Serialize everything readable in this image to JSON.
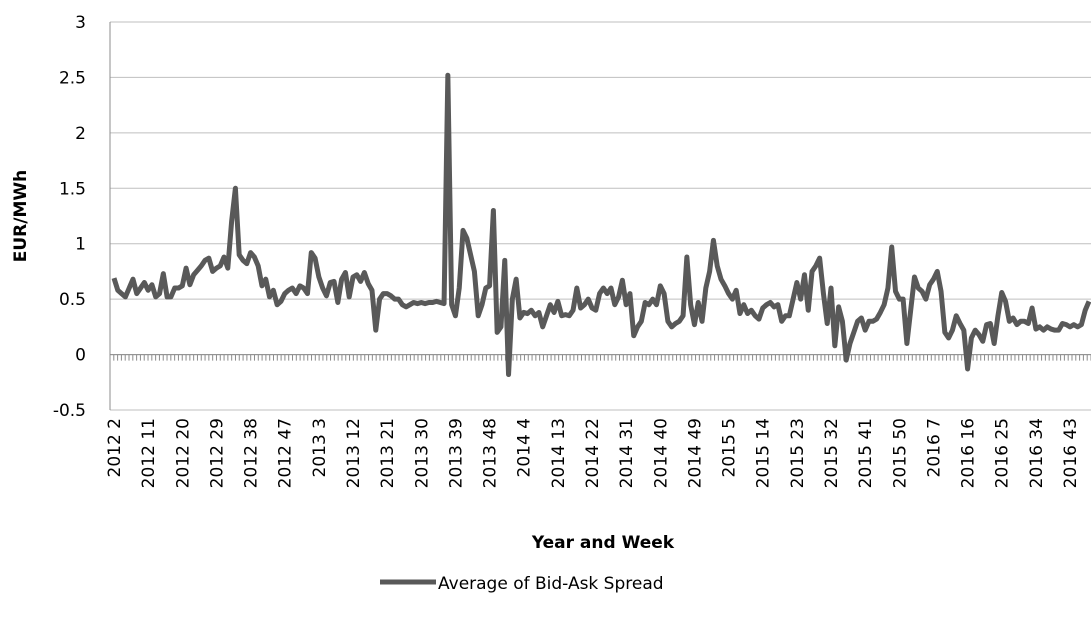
{
  "chart_data": {
    "type": "line",
    "x_label": "Year and Week",
    "y_label": "EUR/MWh",
    "categories": [
      "2012 2",
      null,
      null,
      null,
      null,
      null,
      null,
      null,
      null,
      "2012 11",
      null,
      null,
      null,
      null,
      null,
      null,
      null,
      null,
      "2012 20",
      null,
      null,
      null,
      null,
      null,
      null,
      null,
      null,
      "2012 29",
      null,
      null,
      null,
      null,
      null,
      null,
      null,
      null,
      "2012 38",
      null,
      null,
      null,
      null,
      null,
      null,
      null,
      null,
      "2012 47",
      null,
      null,
      null,
      null,
      null,
      null,
      null,
      null,
      "2013 3",
      null,
      null,
      null,
      null,
      null,
      null,
      null,
      null,
      "2013 12",
      null,
      null,
      null,
      null,
      null,
      null,
      null,
      null,
      "2013 21",
      null,
      null,
      null,
      null,
      null,
      null,
      null,
      null,
      "2013 30",
      null,
      null,
      null,
      null,
      null,
      null,
      null,
      null,
      "2013 39",
      null,
      null,
      null,
      null,
      null,
      null,
      null,
      null,
      "2013 48",
      null,
      null,
      null,
      null,
      null,
      null,
      null,
      null,
      "2014 4",
      null,
      null,
      null,
      null,
      null,
      null,
      null,
      null,
      "2014 13",
      null,
      null,
      null,
      null,
      null,
      null,
      null,
      null,
      "2014 22",
      null,
      null,
      null,
      null,
      null,
      null,
      null,
      null,
      "2014 31",
      null,
      null,
      null,
      null,
      null,
      null,
      null,
      null,
      "2014 40",
      null,
      null,
      null,
      null,
      null,
      null,
      null,
      null,
      "2014 49",
      null,
      null,
      null,
      null,
      null,
      null,
      null,
      null,
      "2015 5",
      null,
      null,
      null,
      null,
      null,
      null,
      null,
      null,
      "2015 14",
      null,
      null,
      null,
      null,
      null,
      null,
      null,
      null,
      "2015 23",
      null,
      null,
      null,
      null,
      null,
      null,
      null,
      null,
      "2015 32",
      null,
      null,
      null,
      null,
      null,
      null,
      null,
      null,
      "2015 41",
      null,
      null,
      null,
      null,
      null,
      null,
      null,
      null,
      "2015 50",
      null,
      null,
      null,
      null,
      null,
      null,
      null,
      null,
      "2016 7",
      null,
      null,
      null,
      null,
      null,
      null,
      null,
      null,
      "2016 16",
      null,
      null,
      null,
      null,
      null,
      null,
      null,
      null,
      "2016 25",
      null,
      null,
      null,
      null,
      null,
      null,
      null,
      null,
      "2016 34",
      null,
      null,
      null,
      null,
      null,
      null,
      null,
      null,
      "2016 43",
      null,
      null,
      null,
      null,
      null
    ],
    "series": [
      {
        "name": "Average of Bid-Ask Spread",
        "color": "#595959",
        "values": [
          0.69,
          0.58,
          0.55,
          0.52,
          0.6,
          0.68,
          0.55,
          0.6,
          0.65,
          0.58,
          0.63,
          0.52,
          0.55,
          0.73,
          0.52,
          0.52,
          0.6,
          0.6,
          0.62,
          0.78,
          0.63,
          0.72,
          0.76,
          0.8,
          0.85,
          0.87,
          0.75,
          0.78,
          0.8,
          0.88,
          0.78,
          1.2,
          1.5,
          0.9,
          0.85,
          0.82,
          0.92,
          0.88,
          0.8,
          0.62,
          0.68,
          0.52,
          0.58,
          0.45,
          0.48,
          0.55,
          0.58,
          0.6,
          0.55,
          0.62,
          0.6,
          0.55,
          0.92,
          0.87,
          0.7,
          0.6,
          0.53,
          0.65,
          0.66,
          0.47,
          0.68,
          0.74,
          0.52,
          0.7,
          0.72,
          0.66,
          0.74,
          0.64,
          0.58,
          0.22,
          0.5,
          0.55,
          0.55,
          0.53,
          0.5,
          0.5,
          0.45,
          0.43,
          0.45,
          0.47,
          0.46,
          0.47,
          0.46,
          0.47,
          0.47,
          0.48,
          0.47,
          0.46,
          2.52,
          0.45,
          0.35,
          0.6,
          1.12,
          1.05,
          0.9,
          0.75,
          0.35,
          0.45,
          0.6,
          0.62,
          1.3,
          0.2,
          0.25,
          0.85,
          -0.18,
          0.5,
          0.68,
          0.33,
          0.38,
          0.37,
          0.4,
          0.35,
          0.38,
          0.25,
          0.35,
          0.45,
          0.38,
          0.48,
          0.35,
          0.36,
          0.35,
          0.4,
          0.6,
          0.42,
          0.45,
          0.5,
          0.42,
          0.4,
          0.55,
          0.6,
          0.55,
          0.6,
          0.45,
          0.52,
          0.67,
          0.45,
          0.55,
          0.17,
          0.25,
          0.3,
          0.47,
          0.45,
          0.5,
          0.45,
          0.62,
          0.55,
          0.3,
          0.25,
          0.28,
          0.3,
          0.35,
          0.88,
          0.45,
          0.27,
          0.47,
          0.3,
          0.6,
          0.75,
          1.03,
          0.8,
          0.68,
          0.62,
          0.55,
          0.5,
          0.58,
          0.37,
          0.45,
          0.37,
          0.4,
          0.35,
          0.32,
          0.42,
          0.45,
          0.47,
          0.43,
          0.45,
          0.3,
          0.35,
          0.35,
          0.5,
          0.65,
          0.5,
          0.72,
          0.4,
          0.75,
          0.8,
          0.87,
          0.55,
          0.28,
          0.6,
          0.08,
          0.43,
          0.3,
          -0.05,
          0.1,
          0.2,
          0.3,
          0.33,
          0.22,
          0.3,
          0.3,
          0.32,
          0.38,
          0.45,
          0.6,
          0.97,
          0.57,
          0.5,
          0.5,
          0.1,
          0.4,
          0.7,
          0.6,
          0.57,
          0.5,
          0.63,
          0.68,
          0.75,
          0.57,
          0.2,
          0.15,
          0.22,
          0.35,
          0.28,
          0.22,
          -0.13,
          0.15,
          0.22,
          0.18,
          0.12,
          0.27,
          0.28,
          0.1,
          0.35,
          0.56,
          0.48,
          0.3,
          0.33,
          0.27,
          0.3,
          0.3,
          0.28,
          0.42,
          0.23,
          0.25,
          0.22,
          0.25,
          0.23,
          0.22,
          0.22,
          0.28,
          0.27,
          0.25,
          0.27,
          0.25,
          0.27,
          0.4,
          0.48
        ]
      }
    ],
    "ylim": [
      -0.5,
      3
    ],
    "yticks": [
      -0.5,
      0,
      0.5,
      1,
      1.5,
      2,
      2.5,
      3
    ],
    "grid": true,
    "legend": "bottom"
  }
}
